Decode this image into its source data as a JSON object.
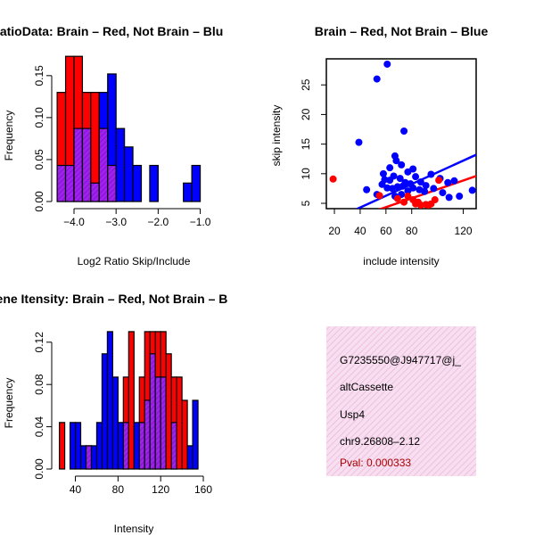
{
  "colors": {
    "red": "#ff0000",
    "blue": "#0000ff",
    "purple": "#a020f0",
    "hatch": "#a020f0",
    "info_bg": "#f7dff0",
    "info_hatch": "#eeb4dc",
    "pval": "#aa0000"
  },
  "chart_data": [
    {
      "type": "bar",
      "title": "RatioData: Brain – Red, Not Brain – Blu",
      "xlabel": "Log2 Ratio Skip/Include",
      "ylabel": "Frequency",
      "xlim": [
        -4.36,
        -0.8
      ],
      "ylim": [
        0,
        0.17
      ],
      "xticks": [
        -4.0,
        -3.0,
        -2.0,
        -1.0
      ],
      "xtick_labels": [
        "−4.0",
        "−3.0",
        "−2.0",
        "−1.0"
      ],
      "yticks": [
        0.0,
        0.05,
        0.1,
        0.15
      ],
      "ytick_labels": [
        "0.00",
        "0.05",
        "0.10",
        "0.15"
      ],
      "bin_width": 0.2,
      "series": [
        {
          "name": "Brain",
          "color": "red",
          "bins": [
            {
              "x0": -4.4,
              "x1": -4.2,
              "value": 0.13
            },
            {
              "x0": -4.2,
              "x1": -4.0,
              "value": 0.173
            },
            {
              "x0": -4.0,
              "x1": -3.8,
              "value": 0.173
            },
            {
              "x0": -3.8,
              "x1": -3.6,
              "value": 0.13
            },
            {
              "x0": -3.6,
              "x1": -3.4,
              "value": 0.13
            },
            {
              "x0": -3.4,
              "x1": -3.2,
              "value": 0.087
            },
            {
              "x0": -3.2,
              "x1": -3.0,
              "value": 0.043
            }
          ]
        },
        {
          "name": "Not Brain",
          "color": "blue",
          "bins": [
            {
              "x0": -4.4,
              "x1": -4.2,
              "value": 0.043
            },
            {
              "x0": -4.2,
              "x1": -4.0,
              "value": 0.043
            },
            {
              "x0": -4.0,
              "x1": -3.8,
              "value": 0.087
            },
            {
              "x0": -3.8,
              "x1": -3.6,
              "value": 0.087
            },
            {
              "x0": -3.6,
              "x1": -3.4,
              "value": 0.022
            },
            {
              "x0": -3.4,
              "x1": -3.2,
              "value": 0.13
            },
            {
              "x0": -3.2,
              "x1": -3.0,
              "value": 0.152
            },
            {
              "x0": -3.0,
              "x1": -2.8,
              "value": 0.087
            },
            {
              "x0": -2.8,
              "x1": -2.6,
              "value": 0.065
            },
            {
              "x0": -2.6,
              "x1": -2.4,
              "value": 0.043
            },
            {
              "x0": -2.2,
              "x1": -2.0,
              "value": 0.043
            },
            {
              "x0": -1.4,
              "x1": -1.2,
              "value": 0.022
            },
            {
              "x0": -1.2,
              "x1": -1.0,
              "value": 0.043
            }
          ]
        }
      ]
    },
    {
      "type": "scatter",
      "title": "Brain – Red, Not Brain – Blue",
      "xlabel": "include intensity",
      "ylabel": "skip intensity",
      "xlim": [
        13.75,
        130
      ],
      "ylim": [
        4.1,
        29.4
      ],
      "xticks": [
        20,
        40,
        60,
        80,
        120
      ],
      "yticks": [
        5,
        10,
        15,
        20,
        25
      ],
      "series": [
        {
          "name": "Not Brain",
          "color": "blue",
          "points": [
            [
              61,
              28.5
            ],
            [
              53,
              26
            ],
            [
              39,
              15.3
            ],
            [
              74,
              17.2
            ],
            [
              67,
              13
            ],
            [
              68,
              12.2
            ],
            [
              63,
              11
            ],
            [
              72,
              11.5
            ],
            [
              77,
              10.3
            ],
            [
              81,
              10.8
            ],
            [
              58,
              10
            ],
            [
              66,
              9.6
            ],
            [
              71,
              9.2
            ],
            [
              59,
              9
            ],
            [
              63,
              8.9
            ],
            [
              75,
              8.5
            ],
            [
              79,
              8.3
            ],
            [
              83,
              9.5
            ],
            [
              87,
              8.6
            ],
            [
              91,
              8
            ],
            [
              95,
              9.9
            ],
            [
              102,
              9.2
            ],
            [
              108,
              8.5
            ],
            [
              113,
              8.8
            ],
            [
              57,
              8.2
            ],
            [
              61,
              7.6
            ],
            [
              65,
              7.5
            ],
            [
              69,
              7.8
            ],
            [
              73,
              7.9
            ],
            [
              77,
              7.1
            ],
            [
              81,
              7.6
            ],
            [
              86,
              7.3
            ],
            [
              90,
              7.0
            ],
            [
              97,
              7.5
            ],
            [
              104,
              6.8
            ],
            [
              109,
              6
            ],
            [
              117,
              6.2
            ],
            [
              127,
              7.2
            ],
            [
              45,
              7.3
            ],
            [
              53,
              6.5
            ],
            [
              67,
              6.2
            ],
            [
              72,
              6.5
            ]
          ]
        },
        {
          "name": "Brain",
          "color": "red",
          "points": [
            [
              19,
              9.1
            ],
            [
              55,
              6.3
            ],
            [
              69,
              5.8
            ],
            [
              74,
              5.2
            ],
            [
              77,
              6.2
            ],
            [
              81,
              5.6
            ],
            [
              83,
              4.9
            ],
            [
              85,
              5.2
            ],
            [
              87,
              4.7
            ],
            [
              91,
              4.8
            ],
            [
              93,
              4.7
            ],
            [
              95,
              4.9
            ],
            [
              98,
              5.6
            ],
            [
              101,
              8.9
            ]
          ]
        }
      ],
      "fit_lines": [
        {
          "name": "Not Brain",
          "color": "blue",
          "x": [
            35,
            130
          ],
          "y": [
            3.8,
            13.2
          ]
        },
        {
          "name": "Brain",
          "color": "red",
          "x": [
            50,
            130
          ],
          "y": [
            3.6,
            9.6
          ]
        }
      ]
    },
    {
      "type": "bar",
      "title": "Gene Itensity: Brain – Red, Not Brain – B",
      "xlabel": "Intensity",
      "ylabel": "Frequency",
      "xlim": [
        24.5,
        165
      ],
      "ylim": [
        0,
        0.135
      ],
      "xticks": [
        40,
        80,
        120,
        160
      ],
      "xtick_labels": [
        "40",
        "80",
        "120",
        "160"
      ],
      "yticks": [
        0.0,
        0.04,
        0.08,
        0.12
      ],
      "ytick_labels": [
        "0.00",
        "0.04",
        "0.08",
        "0.12"
      ],
      "bin_width": 5,
      "series": [
        {
          "name": "Brain",
          "color": "red",
          "bins": [
            {
              "x0": 25,
              "x1": 30,
              "value": 0.044
            },
            {
              "x0": 50,
              "x1": 55,
              "value": 0.022
            },
            {
              "x0": 85,
              "x1": 90,
              "value": 0.087
            },
            {
              "x0": 90,
              "x1": 95,
              "value": 0.13
            },
            {
              "x0": 100,
              "x1": 105,
              "value": 0.087
            },
            {
              "x0": 105,
              "x1": 110,
              "value": 0.13
            },
            {
              "x0": 110,
              "x1": 115,
              "value": 0.13
            },
            {
              "x0": 115,
              "x1": 120,
              "value": 0.13
            },
            {
              "x0": 120,
              "x1": 125,
              "value": 0.13
            },
            {
              "x0": 125,
              "x1": 130,
              "value": 0.109
            },
            {
              "x0": 130,
              "x1": 135,
              "value": 0.087
            },
            {
              "x0": 135,
              "x1": 140,
              "value": 0.087
            },
            {
              "x0": 140,
              "x1": 145,
              "value": 0.065
            }
          ]
        },
        {
          "name": "Not Brain",
          "color": "blue",
          "bins": [
            {
              "x0": 35,
              "x1": 40,
              "value": 0.044
            },
            {
              "x0": 40,
              "x1": 45,
              "value": 0.044
            },
            {
              "x0": 45,
              "x1": 50,
              "value": 0.022
            },
            {
              "x0": 50,
              "x1": 55,
              "value": 0.022
            },
            {
              "x0": 55,
              "x1": 60,
              "value": 0.022
            },
            {
              "x0": 60,
              "x1": 65,
              "value": 0.044
            },
            {
              "x0": 65,
              "x1": 70,
              "value": 0.109
            },
            {
              "x0": 70,
              "x1": 75,
              "value": 0.13
            },
            {
              "x0": 75,
              "x1": 80,
              "value": 0.087
            },
            {
              "x0": 80,
              "x1": 85,
              "value": 0.044
            },
            {
              "x0": 85,
              "x1": 90,
              "value": 0.044
            },
            {
              "x0": 95,
              "x1": 100,
              "value": 0.044
            },
            {
              "x0": 100,
              "x1": 105,
              "value": 0.044
            },
            {
              "x0": 105,
              "x1": 110,
              "value": 0.065
            },
            {
              "x0": 110,
              "x1": 115,
              "value": 0.109
            },
            {
              "x0": 115,
              "x1": 120,
              "value": 0.087
            },
            {
              "x0": 120,
              "x1": 125,
              "value": 0.087
            },
            {
              "x0": 130,
              "x1": 135,
              "value": 0.044
            },
            {
              "x0": 145,
              "x1": 150,
              "value": 0.022
            },
            {
              "x0": 150,
              "x1": 155,
              "value": 0.065
            }
          ]
        }
      ]
    }
  ],
  "info_panel": {
    "id": "G7235550@J947717@j_",
    "event_type": "altCassette",
    "gene": "Usp4",
    "location": "chr9.26808–2.12",
    "pval": "Pval: 0.000333"
  }
}
